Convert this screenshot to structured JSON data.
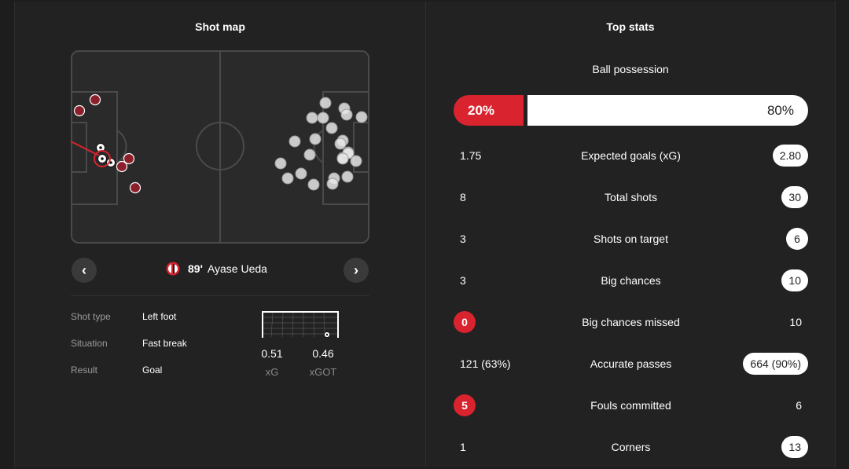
{
  "shot_map": {
    "title": "Shot map",
    "selected_shot": {
      "minute": "89'",
      "player": "Ayase Ueda",
      "details": [
        {
          "label": "Shot type",
          "value": "Left foot"
        },
        {
          "label": "Situation",
          "value": "Fast break"
        },
        {
          "label": "Result",
          "value": "Goal"
        }
      ],
      "xg": {
        "value": "0.51",
        "label": "xG"
      },
      "xgot": {
        "value": "0.46",
        "label": "xGOT"
      }
    },
    "prev_icon": "chevron-left",
    "next_icon": "chevron-right",
    "colors": {
      "home_shot": "#8b1f2a",
      "away_shot": "#e6e6e6",
      "accent": "#d9232e"
    }
  },
  "top_stats": {
    "title": "Top stats",
    "possession": {
      "label": "Ball possession",
      "home": "20%",
      "away": "80%",
      "home_fraction": 0.2
    },
    "rows": [
      {
        "home": "1.75",
        "label": "Expected goals (xG)",
        "away": "2.80",
        "home_highlight": false,
        "away_highlight": true
      },
      {
        "home": "8",
        "label": "Total shots",
        "away": "30",
        "home_highlight": false,
        "away_highlight": true
      },
      {
        "home": "3",
        "label": "Shots on target",
        "away": "6",
        "home_highlight": false,
        "away_highlight": true
      },
      {
        "home": "3",
        "label": "Big chances",
        "away": "10",
        "home_highlight": false,
        "away_highlight": true
      },
      {
        "home": "0",
        "label": "Big chances missed",
        "away": "10",
        "home_highlight": true,
        "away_highlight": false
      },
      {
        "home": "121 (63%)",
        "label": "Accurate passes",
        "away": "664 (90%)",
        "home_highlight": false,
        "away_highlight": true
      },
      {
        "home": "5",
        "label": "Fouls committed",
        "away": "6",
        "home_highlight": true,
        "away_highlight": false
      },
      {
        "home": "1",
        "label": "Corners",
        "away": "13",
        "home_highlight": false,
        "away_highlight": true
      }
    ]
  }
}
